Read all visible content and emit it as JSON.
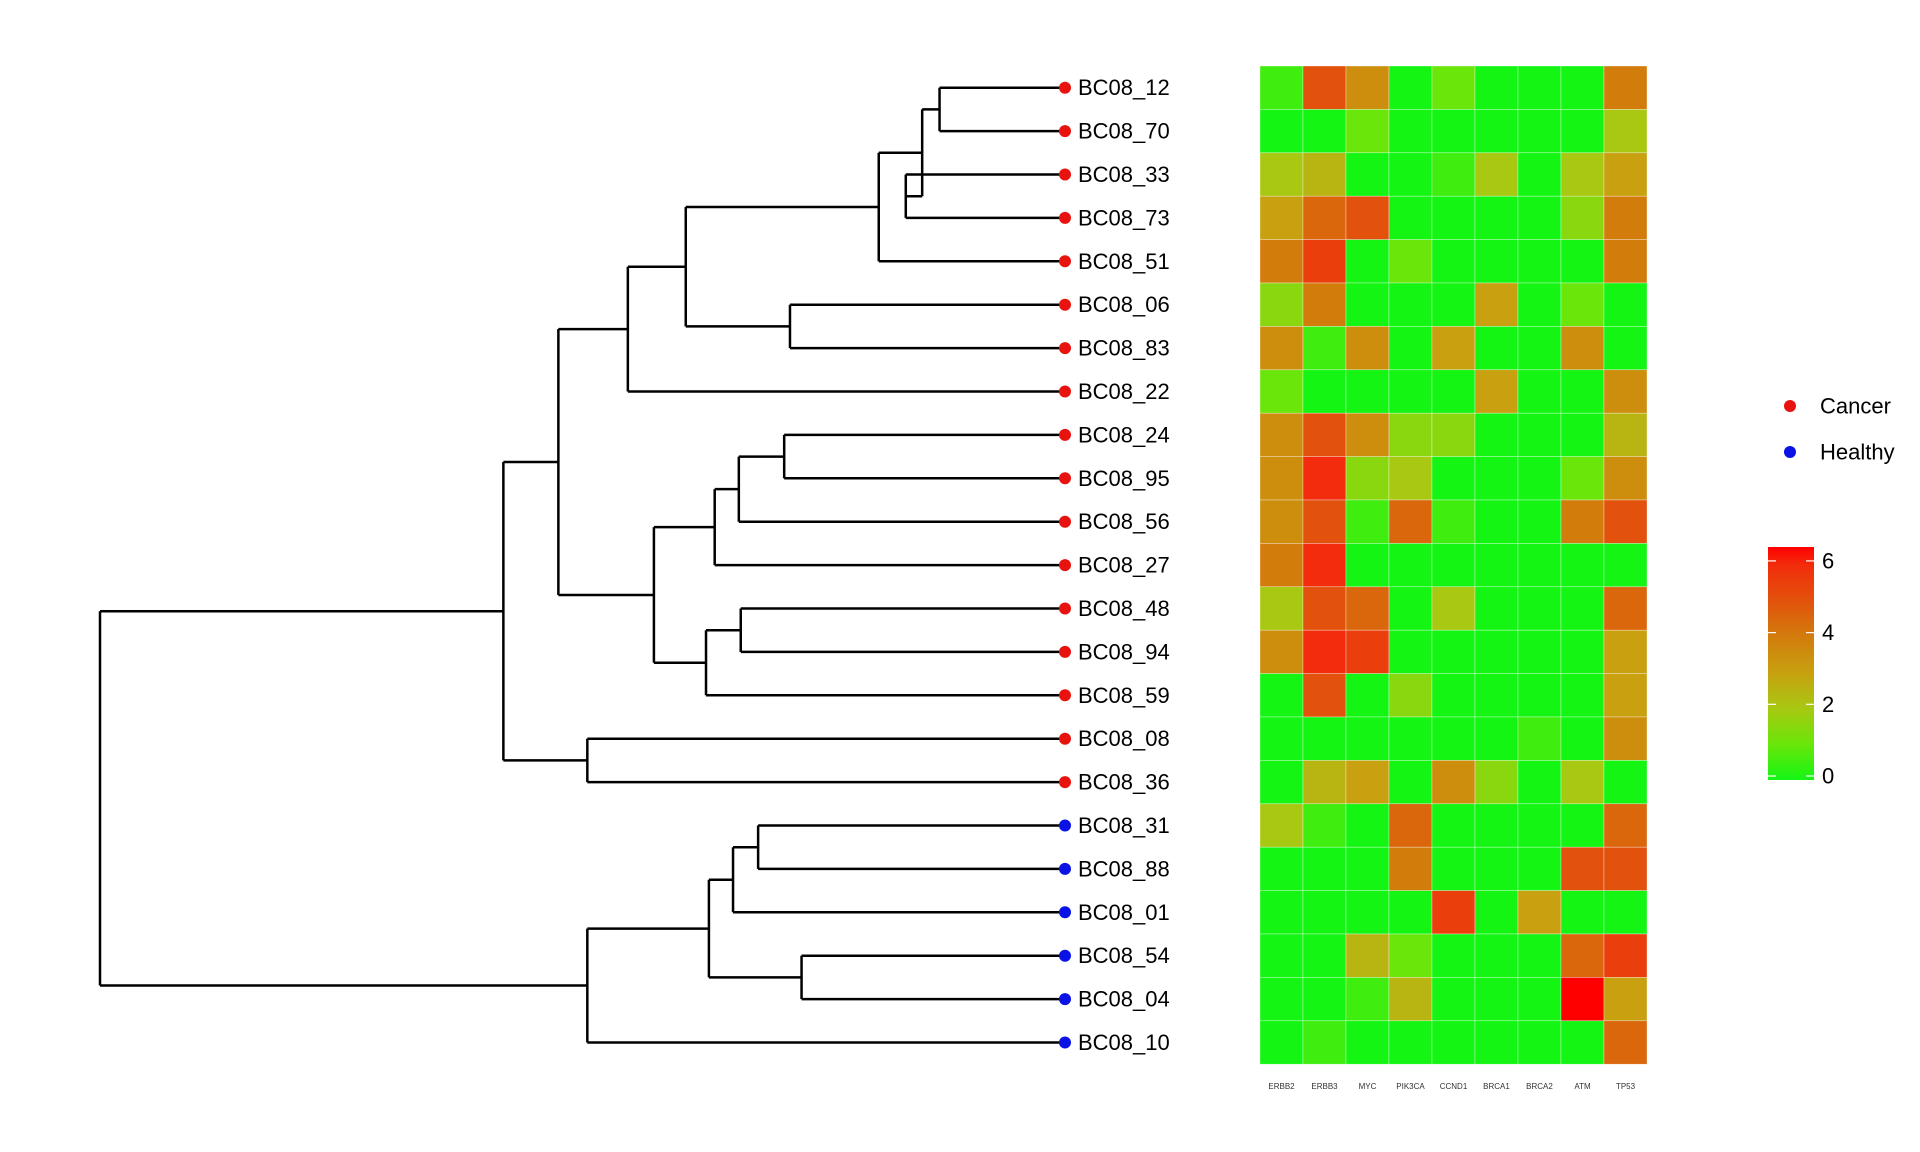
{
  "chart_data": {
    "type": "heatmap",
    "title": "",
    "xlabel": "",
    "ylabel": "",
    "columns": [
      "ERBB2",
      "ERBB3",
      "MYC",
      "PIK3CA",
      "CCND1",
      "BRCA1",
      "BRCA2",
      "ATM",
      "TP53"
    ],
    "rows": [
      {
        "id": "BC08_12",
        "group": "Cancer",
        "values": [
          0.5,
          5,
          3.5,
          0,
          1,
          0,
          0,
          0,
          4
        ]
      },
      {
        "id": "BC08_70",
        "group": "Cancer",
        "values": [
          0,
          0,
          1,
          0,
          0,
          0,
          0,
          0,
          2
        ]
      },
      {
        "id": "BC08_33",
        "group": "Cancer",
        "values": [
          2,
          2.5,
          0,
          0,
          0.5,
          2,
          0,
          2,
          3
        ]
      },
      {
        "id": "BC08_73",
        "group": "Cancer",
        "values": [
          3,
          4.5,
          5,
          0,
          0,
          0,
          0,
          1.5,
          4
        ]
      },
      {
        "id": "BC08_51",
        "group": "Cancer",
        "values": [
          4,
          5.5,
          0,
          1,
          0,
          0,
          0,
          0,
          4
        ]
      },
      {
        "id": "BC08_06",
        "group": "Cancer",
        "values": [
          1.5,
          4,
          0,
          0,
          0,
          3,
          0,
          1,
          0
        ]
      },
      {
        "id": "BC08_83",
        "group": "Cancer",
        "values": [
          3.5,
          0.5,
          3.5,
          0,
          3,
          0,
          0,
          3.5,
          0
        ]
      },
      {
        "id": "BC08_22",
        "group": "Cancer",
        "values": [
          1,
          0,
          0,
          0,
          0,
          3,
          0,
          0,
          3.5
        ]
      },
      {
        "id": "BC08_24",
        "group": "Cancer",
        "values": [
          3.5,
          5,
          3.5,
          1.5,
          1.5,
          0,
          0,
          0,
          2.5
        ]
      },
      {
        "id": "BC08_95",
        "group": "Cancer",
        "values": [
          3.5,
          6,
          1.5,
          2,
          0,
          0,
          0,
          1,
          3.5
        ]
      },
      {
        "id": "BC08_56",
        "group": "Cancer",
        "values": [
          3.5,
          5,
          0.5,
          4.5,
          0.5,
          0,
          0,
          4,
          5
        ]
      },
      {
        "id": "BC08_27",
        "group": "Cancer",
        "values": [
          4,
          6,
          0,
          0,
          0,
          0,
          0,
          0,
          0
        ]
      },
      {
        "id": "BC08_48",
        "group": "Cancer",
        "values": [
          2,
          5,
          4.5,
          0,
          2,
          0,
          0,
          0,
          4.5
        ]
      },
      {
        "id": "BC08_94",
        "group": "Cancer",
        "values": [
          3.5,
          6,
          5.5,
          0,
          0,
          0,
          0,
          0,
          3
        ]
      },
      {
        "id": "BC08_59",
        "group": "Cancer",
        "values": [
          0,
          5,
          0,
          1.5,
          0,
          0,
          0,
          0,
          3
        ]
      },
      {
        "id": "BC08_08",
        "group": "Cancer",
        "values": [
          0,
          0,
          0,
          0,
          0,
          0,
          0.5,
          0,
          3.5
        ]
      },
      {
        "id": "BC08_36",
        "group": "Cancer",
        "values": [
          0,
          2.5,
          3,
          0,
          3.5,
          1.5,
          0,
          2,
          0
        ]
      },
      {
        "id": "BC08_31",
        "group": "Healthy",
        "values": [
          2,
          0.5,
          0,
          4.5,
          0,
          0,
          0,
          0,
          4.5
        ]
      },
      {
        "id": "BC08_88",
        "group": "Healthy",
        "values": [
          0,
          0,
          0,
          4,
          0,
          0,
          0,
          5,
          5
        ]
      },
      {
        "id": "BC08_01",
        "group": "Healthy",
        "values": [
          0,
          0,
          0,
          0,
          5.5,
          0,
          3,
          0,
          0
        ]
      },
      {
        "id": "BC08_54",
        "group": "Healthy",
        "values": [
          0,
          0,
          2.5,
          1,
          0,
          0,
          0,
          4.5,
          5.5
        ]
      },
      {
        "id": "BC08_04",
        "group": "Healthy",
        "values": [
          0,
          0,
          0.5,
          2.5,
          0,
          0,
          0,
          6.5,
          3
        ]
      },
      {
        "id": "BC08_10",
        "group": "Healthy",
        "values": [
          0,
          0.5,
          0,
          0,
          0,
          0,
          0,
          0,
          4.5
        ]
      }
    ],
    "dendrogram": {
      "nodes": [
        {
          "id": "n1",
          "children": [
            0,
            1
          ],
          "height": 0.87
        },
        {
          "id": "n2",
          "children": [
            2,
            3
          ],
          "height": 0.835
        },
        {
          "id": "n3",
          "children": [
            "n1",
            "n2"
          ],
          "height": 0.852
        },
        {
          "id": "n4",
          "children": [
            "n3",
            4
          ],
          "height": 0.807
        },
        {
          "id": "n5",
          "children": [
            5,
            6
          ],
          "height": 0.715
        },
        {
          "id": "n6",
          "children": [
            "n4",
            "n5"
          ],
          "height": 0.607
        },
        {
          "id": "n7",
          "children": [
            "n6",
            7
          ],
          "height": 0.547
        },
        {
          "id": "n8",
          "children": [
            8,
            9
          ],
          "height": 0.709
        },
        {
          "id": "n9",
          "children": [
            "n8",
            10
          ],
          "height": 0.662
        },
        {
          "id": "n10",
          "children": [
            "n9",
            11
          ],
          "height": 0.637
        },
        {
          "id": "n11",
          "children": [
            12,
            13
          ],
          "height": 0.664
        },
        {
          "id": "n12",
          "children": [
            "n11",
            14
          ],
          "height": 0.628
        },
        {
          "id": "n13",
          "children": [
            "n10",
            "n12"
          ],
          "height": 0.574
        },
        {
          "id": "n14",
          "children": [
            "n7",
            "n13"
          ],
          "height": 0.475
        },
        {
          "id": "n15",
          "children": [
            15,
            16
          ],
          "height": 0.505
        },
        {
          "id": "n16",
          "children": [
            "n14",
            "n15"
          ],
          "height": 0.418
        },
        {
          "id": "n17",
          "children": [
            17,
            18
          ],
          "height": 0.682
        },
        {
          "id": "n18",
          "children": [
            "n17",
            19
          ],
          "height": 0.656
        },
        {
          "id": "n19",
          "children": [
            20,
            21
          ],
          "height": 0.727
        },
        {
          "id": "n20",
          "children": [
            "n18",
            "n19"
          ],
          "height": 0.631
        },
        {
          "id": "n21",
          "children": [
            "n20",
            22
          ],
          "height": 0.505
        },
        {
          "id": "root",
          "children": [
            "n16",
            "n21"
          ],
          "height": 0.0
        }
      ]
    },
    "groups": [
      {
        "name": "Cancer",
        "color": "#e8130f"
      },
      {
        "name": "Healthy",
        "color": "#0a12e6"
      }
    ],
    "color_scale": {
      "min": 0,
      "max": 6.5,
      "ticks": [
        "0",
        "2",
        "4",
        "6"
      ],
      "tick_values": [
        0,
        2,
        4,
        6
      ],
      "stops": [
        {
          "v": 0,
          "color": "#14f514"
        },
        {
          "v": 1,
          "color": "#6ae60a"
        },
        {
          "v": 2,
          "color": "#a8c812"
        },
        {
          "v": 3,
          "color": "#c8a010"
        },
        {
          "v": 4,
          "color": "#d27c0c"
        },
        {
          "v": 5,
          "color": "#e2520c"
        },
        {
          "v": 6,
          "color": "#f22c0c"
        },
        {
          "v": 6.5,
          "color": "#ff0000"
        }
      ]
    },
    "legend_placement": "right"
  }
}
